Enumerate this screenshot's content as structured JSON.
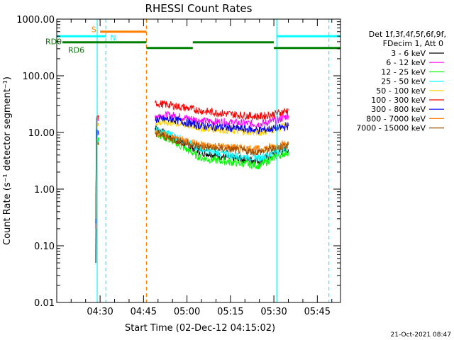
{
  "chart_data": {
    "type": "line",
    "title": "RHESSI Count Rates",
    "xlabel": "Start Time (02-Dec-12 04:15:02)",
    "ylabel": "Count Rate (s⁻¹ detector segment⁻¹)",
    "y_scale": "log",
    "ylim": [
      0.01,
      1000
    ],
    "y_ticks": [
      {
        "value": 1000,
        "label": "1000.00"
      },
      {
        "value": 100,
        "label": "100.00"
      },
      {
        "value": 10,
        "label": "10.00"
      },
      {
        "value": 1,
        "label": "1.00"
      },
      {
        "value": 0.1,
        "label": "0.10"
      },
      {
        "value": 0.01,
        "label": "0.01"
      }
    ],
    "xlim": [
      "04:15:02",
      "05:53:00"
    ],
    "x_ticks": [
      "04:30",
      "04:45",
      "05:00",
      "05:15",
      "05:30",
      "05:45"
    ],
    "grid": false,
    "legend_position": "right",
    "legend_header": [
      "Det 1f,3f,4f,5f,6f,9f,",
      "FDecim 1, Att 0"
    ],
    "timestamp": "21-Oct-2021 08:47",
    "state_bar_labels": {
      "saa": "S",
      "night": "N",
      "decimation": "RD0",
      "decimation2": "RD6"
    },
    "flag_colors": {
      "saa": "#ff8000",
      "night": "#00ffff",
      "decimation": "#008000"
    },
    "series": [
      {
        "name": "3 - 6 keV",
        "color": "#000000",
        "segments": [
          [
            [
              "04:28:30",
              0.05
            ],
            [
              "04:28:45",
              15
            ],
            [
              "04:29:30",
              14
            ]
          ],
          [
            [
              "04:49:00",
              12
            ],
            [
              "04:55:00",
              8
            ],
            [
              "05:05:00",
              4.5
            ],
            [
              "05:15:00",
              3.5
            ],
            [
              "05:25:00",
              3.2
            ],
            [
              "05:32:00",
              4.5
            ],
            [
              "05:35:00",
              5
            ]
          ]
        ]
      },
      {
        "name": "6 - 12 keV",
        "color": "#ff00ff",
        "segments": [
          [
            [
              "04:28:30",
              0.3
            ],
            [
              "04:28:45",
              17
            ],
            [
              "04:29:30",
              16
            ]
          ],
          [
            [
              "04:49:00",
              20
            ],
            [
              "04:55:00",
              20
            ],
            [
              "05:05:00",
              16
            ],
            [
              "05:15:00",
              15
            ],
            [
              "05:25:00",
              14
            ],
            [
              "05:32:00",
              17
            ],
            [
              "05:35:00",
              20
            ]
          ]
        ]
      },
      {
        "name": "12 - 25 keV",
        "color": "#00ff00",
        "segments": [
          [
            [
              "04:28:30",
              0.4
            ],
            [
              "04:28:45",
              8
            ],
            [
              "04:29:30",
              7
            ]
          ],
          [
            [
              "04:49:00",
              10
            ],
            [
              "04:55:00",
              7
            ],
            [
              "05:05:00",
              3.5
            ],
            [
              "05:15:00",
              3
            ],
            [
              "05:25:00",
              2.6
            ],
            [
              "05:32:00",
              4
            ],
            [
              "05:35:00",
              4.5
            ]
          ]
        ]
      },
      {
        "name": "25 - 50 keV",
        "color": "#00ffff",
        "segments": [
          [
            [
              "04:28:30",
              0.3
            ],
            [
              "04:28:45",
              7
            ],
            [
              "04:29:30",
              6
            ]
          ],
          [
            [
              "04:49:00",
              11
            ],
            [
              "04:55:00",
              9
            ],
            [
              "05:05:00",
              5
            ],
            [
              "05:15:00",
              4
            ],
            [
              "05:25:00",
              3.5
            ],
            [
              "05:32:00",
              5
            ],
            [
              "05:35:00",
              5.5
            ]
          ]
        ]
      },
      {
        "name": "50 - 100 keV",
        "color": "#ffd000",
        "segments": [
          [
            [
              "04:28:30",
              0.5
            ],
            [
              "04:28:45",
              14
            ],
            [
              "04:29:30",
              13
            ]
          ],
          [
            [
              "04:49:00",
              15
            ],
            [
              "04:55:00",
              15
            ],
            [
              "05:05:00",
              12
            ],
            [
              "05:15:00",
              11
            ],
            [
              "05:25:00",
              10
            ],
            [
              "05:32:00",
              12
            ],
            [
              "05:35:00",
              14
            ]
          ]
        ]
      },
      {
        "name": "100 - 300 keV",
        "color": "#ff0000",
        "segments": [
          [
            [
              "04:28:30",
              0.2
            ],
            [
              "04:28:45",
              18
            ],
            [
              "04:29:30",
              17
            ]
          ],
          [
            [
              "04:49:00",
              33
            ],
            [
              "04:55:00",
              30
            ],
            [
              "05:05:00",
              24
            ],
            [
              "05:15:00",
              21
            ],
            [
              "05:25:00",
              19
            ],
            [
              "05:32:00",
              22
            ],
            [
              "05:35:00",
              25
            ]
          ]
        ]
      },
      {
        "name": "300 - 800 keV",
        "color": "#0000ff",
        "segments": [
          [
            [
              "04:28:30",
              0.25
            ],
            [
              "04:28:45",
              10
            ],
            [
              "04:29:30",
              9
            ]
          ],
          [
            [
              "04:49:00",
              17
            ],
            [
              "04:55:00",
              17
            ],
            [
              "05:05:00",
              13
            ],
            [
              "05:15:00",
              12
            ],
            [
              "05:25:00",
              11
            ],
            [
              "05:32:00",
              12
            ],
            [
              "05:35:00",
              13
            ]
          ]
        ]
      },
      {
        "name": "800 - 7000 keV",
        "color": "#ff8000",
        "segments": [
          [
            [
              "04:28:30",
              0.3
            ],
            [
              "04:28:45",
              7
            ],
            [
              "04:29:30",
              6
            ]
          ],
          [
            [
              "04:49:00",
              10
            ],
            [
              "04:55:00",
              8
            ],
            [
              "05:05:00",
              6
            ],
            [
              "05:15:00",
              5.5
            ],
            [
              "05:25:00",
              5
            ],
            [
              "05:32:00",
              6
            ],
            [
              "05:35:00",
              6.5
            ]
          ]
        ]
      },
      {
        "name": "7000 - 15000 keV",
        "color": "#a05000",
        "segments": [
          [
            [
              "04:28:30",
              0.3
            ],
            [
              "04:28:45",
              6.5
            ],
            [
              "04:29:30",
              6
            ]
          ],
          [
            [
              "04:49:00",
              10
            ],
            [
              "04:55:00",
              7.5
            ],
            [
              "05:05:00",
              5.5
            ],
            [
              "05:15:00",
              5
            ],
            [
              "05:25:00",
              4.5
            ],
            [
              "05:32:00",
              5.5
            ],
            [
              "05:35:00",
              6
            ]
          ]
        ]
      }
    ],
    "vertical_markers": [
      {
        "time": "04:29:00",
        "kind": "night",
        "style": "solid"
      },
      {
        "time": "04:32:00",
        "kind": "night",
        "style": "dashed"
      },
      {
        "time": "04:46:00",
        "kind": "saa",
        "style": "dashed"
      },
      {
        "time": "05:31:00",
        "kind": "night",
        "style": "solid"
      },
      {
        "time": "05:49:00",
        "kind": "night",
        "style": "dashed"
      }
    ],
    "state_bars": [
      {
        "kind": "saa",
        "level": 600,
        "start": "04:30:00",
        "end": "04:46:00"
      },
      {
        "kind": "night",
        "level": 500,
        "start": "04:15:02",
        "end": "04:32:00"
      },
      {
        "kind": "night",
        "level": 500,
        "start": "05:31:00",
        "end": "05:53:00"
      },
      {
        "kind": "decimation",
        "level": 390,
        "start": "04:17:00",
        "end": "04:46:00"
      },
      {
        "kind": "decimation",
        "level": 310,
        "start": "04:46:00",
        "end": "05:02:00"
      },
      {
        "kind": "decimation",
        "level": 390,
        "start": "05:02:00",
        "end": "05:30:00"
      },
      {
        "kind": "decimation",
        "level": 310,
        "start": "05:30:00",
        "end": "05:53:00"
      }
    ]
  }
}
